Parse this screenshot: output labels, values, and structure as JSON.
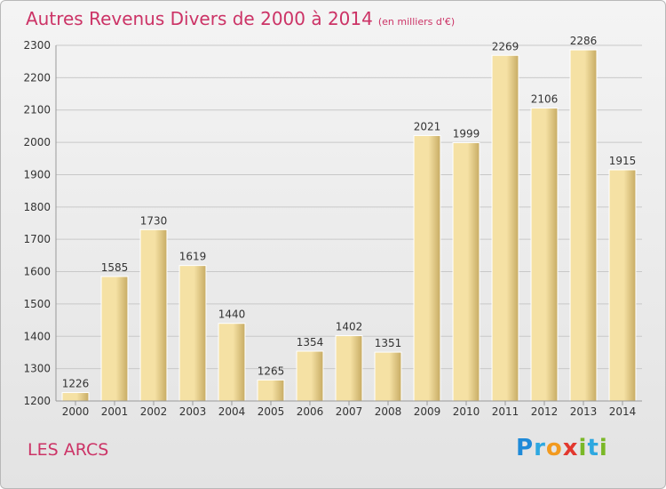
{
  "title": {
    "main": "Autres Revenus Divers de 2000 à 2014",
    "sub": "(en milliers d'€)"
  },
  "place": "LES ARCS",
  "logo": {
    "letters": [
      {
        "ch": "P",
        "color": "#1f8ad8"
      },
      {
        "ch": "r",
        "color": "#2ea8e0"
      },
      {
        "ch": "o",
        "color": "#f29a1f"
      },
      {
        "ch": "x",
        "color": "#e2382e"
      },
      {
        "ch": "i",
        "color": "#7ab827"
      },
      {
        "ch": "t",
        "color": "#2ea8e0"
      },
      {
        "ch": "i",
        "color": "#7ab827"
      }
    ]
  },
  "colors": {
    "title": "#cc3366",
    "bar_light": "#f5e1a4",
    "bar_dark": "#c7ab63",
    "grid": "#c8c8c8",
    "text": "#333333"
  },
  "chart_data": {
    "type": "bar",
    "categories": [
      "2000",
      "2001",
      "2002",
      "2003",
      "2004",
      "2005",
      "2006",
      "2007",
      "2008",
      "2009",
      "2010",
      "2011",
      "2012",
      "2013",
      "2014"
    ],
    "values": [
      1226,
      1585,
      1730,
      1619,
      1440,
      1265,
      1354,
      1402,
      1351,
      2021,
      1999,
      2269,
      2106,
      2286,
      1915
    ],
    "ylim": [
      1200,
      2300
    ],
    "yticks": [
      1200,
      1300,
      1400,
      1500,
      1600,
      1700,
      1800,
      1900,
      2000,
      2100,
      2200,
      2300
    ],
    "grid": true,
    "data_labels": true
  }
}
